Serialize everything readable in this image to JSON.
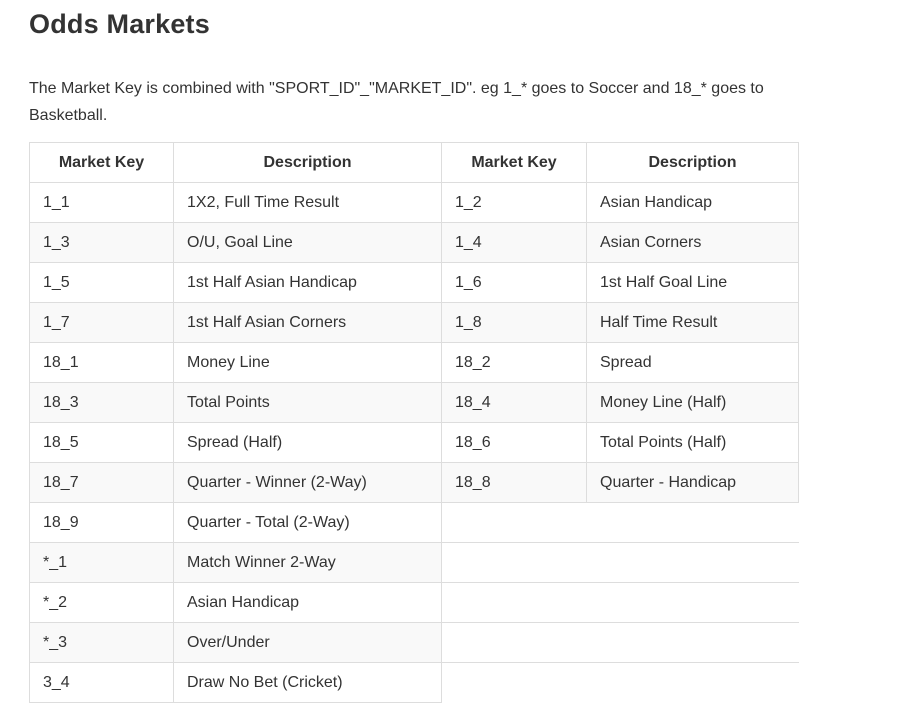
{
  "page": {
    "title": "Odds Markets",
    "intro": "The Market Key is combined with \"SPORT_ID\"_\"MARKET_ID\". eg 1_* goes to Soccer and 18_* goes to Basketball."
  },
  "table": {
    "headers": [
      "Market Key",
      "Description",
      "Market Key",
      "Description"
    ],
    "rows": [
      {
        "key1": "1_1",
        "desc1": "1X2, Full Time Result",
        "key2": "1_2",
        "desc2": "Asian Handicap"
      },
      {
        "key1": "1_3",
        "desc1": "O/U, Goal Line",
        "key2": "1_4",
        "desc2": "Asian Corners"
      },
      {
        "key1": "1_5",
        "desc1": "1st Half Asian Handicap",
        "key2": "1_6",
        "desc2": "1st Half Goal Line"
      },
      {
        "key1": "1_7",
        "desc1": "1st Half Asian Corners",
        "key2": "1_8",
        "desc2": "Half Time Result"
      },
      {
        "key1": "18_1",
        "desc1": "Money Line",
        "key2": "18_2",
        "desc2": "Spread"
      },
      {
        "key1": "18_3",
        "desc1": "Total Points",
        "key2": "18_4",
        "desc2": "Money Line (Half)"
      },
      {
        "key1": "18_5",
        "desc1": "Spread (Half)",
        "key2": "18_6",
        "desc2": "Total Points (Half)"
      },
      {
        "key1": "18_7",
        "desc1": "Quarter - Winner (2-Way)",
        "key2": "18_8",
        "desc2": "Quarter - Handicap"
      },
      {
        "key1": "18_9",
        "desc1": "Quarter - Total (2-Way)"
      },
      {
        "key1": "*_1",
        "desc1": "Match Winner 2-Way"
      },
      {
        "key1": "*_2",
        "desc1": "Asian Handicap"
      },
      {
        "key1": "*_3",
        "desc1": "Over/Under"
      },
      {
        "key1": "3_4",
        "desc1": "Draw No Bet (Cricket)"
      }
    ]
  }
}
